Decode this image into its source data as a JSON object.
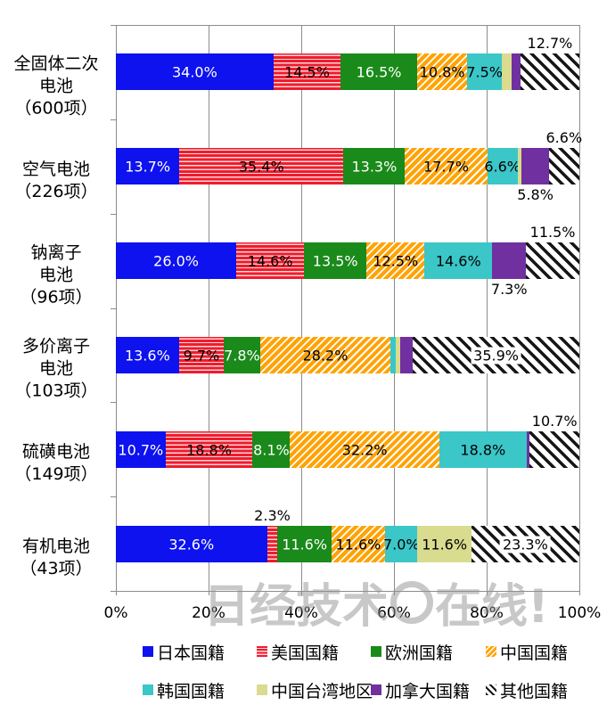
{
  "watermark": {
    "prefix": "日经技术",
    "suffix": "在线!"
  },
  "x_axis": {
    "ticks": [
      "0%",
      "20%",
      "40%",
      "60%",
      "80%",
      "100%"
    ]
  },
  "legend": {
    "rows": [
      [
        "日本国籍",
        "美国国籍",
        "欧洲国籍",
        "中国国籍"
      ],
      [
        "韩国国籍",
        "中国台湾地区",
        "加拿大国籍",
        "其他国籍"
      ]
    ]
  },
  "series_colors": {
    "日本国籍": "#0d12ee",
    "美国国籍": "#ee1c2e",
    "欧洲国籍": "#1a8a1a",
    "中国国籍": "#ffa305",
    "韩国国籍": "#3bc6c8",
    "中国台湾地区": "#d9db8f",
    "加拿大国籍": "#7030a0",
    "其他国籍": "#161616"
  },
  "chart_data": {
    "type": "bar",
    "variant": "horizontal-stacked-100pct",
    "unit": "%",
    "xlim": [
      0,
      100
    ],
    "xticks": [
      0,
      20,
      40,
      60,
      80,
      100
    ],
    "grid": true,
    "legend_position": "bottom",
    "series_order": [
      "日本国籍",
      "美国国籍",
      "欧洲国籍",
      "中国国籍",
      "韩国国籍",
      "中国台湾地区",
      "加拿大国籍",
      "其他国籍"
    ],
    "rows": [
      {
        "category": "全固体二次电池（600项）",
        "category_lines": [
          "全固体二次",
          "电池",
          "（600项）"
        ],
        "segments": [
          {
            "series": "日本国籍",
            "value": 34.0,
            "label": "34.0%",
            "label_pos": "in"
          },
          {
            "series": "美国国籍",
            "value": 14.5,
            "label": "14.5%",
            "label_pos": "in"
          },
          {
            "series": "欧洲国籍",
            "value": 16.5,
            "label": "16.5%",
            "label_pos": "in"
          },
          {
            "series": "中国国籍",
            "value": 10.8,
            "label": "10.8%",
            "label_pos": "in"
          },
          {
            "series": "韩国国籍",
            "value": 7.5,
            "label": "7.5%",
            "label_pos": "in"
          },
          {
            "series": "中国台湾地区",
            "value": 2.0,
            "label": null
          },
          {
            "series": "加拿大国籍",
            "value": 2.0,
            "label": null
          },
          {
            "series": "其他国籍",
            "value": 12.7,
            "label": "12.7%",
            "label_pos": "above"
          }
        ]
      },
      {
        "category": "空气电池（226项）",
        "category_lines": [
          "空气电池",
          "（226项）"
        ],
        "segments": [
          {
            "series": "日本国籍",
            "value": 13.7,
            "label": "13.7%",
            "label_pos": "in"
          },
          {
            "series": "美国国籍",
            "value": 35.4,
            "label": "35.4%",
            "label_pos": "in"
          },
          {
            "series": "欧洲国籍",
            "value": 13.3,
            "label": "13.3%",
            "label_pos": "in"
          },
          {
            "series": "中国国籍",
            "value": 17.7,
            "label": "17.7%",
            "label_pos": "in"
          },
          {
            "series": "韩国国籍",
            "value": 6.6,
            "label": "6.6%",
            "label_pos": "in"
          },
          {
            "series": "中国台湾地区",
            "value": 0.9,
            "label": null
          },
          {
            "series": "加拿大国籍",
            "value": 5.8,
            "label": "5.8%",
            "label_pos": "below"
          },
          {
            "series": "其他国籍",
            "value": 6.6,
            "label": "6.6%",
            "label_pos": "above"
          }
        ]
      },
      {
        "category": "钠离子电池（96项）",
        "category_lines": [
          "钠离子",
          "电池",
          "（96项）"
        ],
        "segments": [
          {
            "series": "日本国籍",
            "value": 26.0,
            "label": "26.0%",
            "label_pos": "in"
          },
          {
            "series": "美国国籍",
            "value": 14.6,
            "label": "14.6%",
            "label_pos": "in"
          },
          {
            "series": "欧洲国籍",
            "value": 13.5,
            "label": "13.5%",
            "label_pos": "in"
          },
          {
            "series": "中国国籍",
            "value": 12.5,
            "label": "12.5%",
            "label_pos": "in"
          },
          {
            "series": "韩国国籍",
            "value": 14.6,
            "label": "14.6%",
            "label_pos": "in"
          },
          {
            "series": "加拿大国籍",
            "value": 7.3,
            "label": "7.3%",
            "label_pos": "below"
          },
          {
            "series": "其他国籍",
            "value": 11.5,
            "label": "11.5%",
            "label_pos": "above"
          }
        ]
      },
      {
        "category": "多价离子电池（103项）",
        "category_lines": [
          "多价离子",
          "电池",
          "（103项）"
        ],
        "segments": [
          {
            "series": "日本国籍",
            "value": 13.6,
            "label": "13.6%",
            "label_pos": "in"
          },
          {
            "series": "美国国籍",
            "value": 9.7,
            "label": "9.7%",
            "label_pos": "in"
          },
          {
            "series": "欧洲国籍",
            "value": 7.8,
            "label": "7.8%",
            "label_pos": "in"
          },
          {
            "series": "中国国籍",
            "value": 28.2,
            "label": "28.2%",
            "label_pos": "in"
          },
          {
            "series": "韩国国籍",
            "value": 1.0,
            "label": null
          },
          {
            "series": "中国台湾地区",
            "value": 1.0,
            "label": null
          },
          {
            "series": "加拿大国籍",
            "value": 2.8,
            "label": null
          },
          {
            "series": "其他国籍",
            "value": 35.9,
            "label": "35.9%",
            "label_pos": "in-patch"
          }
        ]
      },
      {
        "category": "硫磺电池（149项）",
        "category_lines": [
          "硫磺电池",
          "（149项）"
        ],
        "segments": [
          {
            "series": "日本国籍",
            "value": 10.7,
            "label": "10.7%",
            "label_pos": "in"
          },
          {
            "series": "美国国籍",
            "value": 18.8,
            "label": "18.8%",
            "label_pos": "in"
          },
          {
            "series": "欧洲国籍",
            "value": 8.1,
            "label": "8.1%",
            "label_pos": "in"
          },
          {
            "series": "中国国籍",
            "value": 32.2,
            "label": "32.2%",
            "label_pos": "in"
          },
          {
            "series": "韩国国籍",
            "value": 18.8,
            "label": "18.8%",
            "label_pos": "in"
          },
          {
            "series": "加拿大国籍",
            "value": 0.7,
            "label": null
          },
          {
            "series": "其他国籍",
            "value": 10.7,
            "label": "10.7%",
            "label_pos": "above"
          }
        ]
      },
      {
        "category": "有机电池（43项）",
        "category_lines": [
          "有机电池",
          "（43项）"
        ],
        "segments": [
          {
            "series": "日本国籍",
            "value": 32.6,
            "label": "32.6%",
            "label_pos": "in"
          },
          {
            "series": "美国国籍",
            "value": 2.3,
            "label": "2.3%",
            "label_pos": "above"
          },
          {
            "series": "欧洲国籍",
            "value": 11.6,
            "label": "11.6%",
            "label_pos": "in"
          },
          {
            "series": "中国国籍",
            "value": 11.6,
            "label": "11.6%",
            "label_pos": "in"
          },
          {
            "series": "韩国国籍",
            "value": 7.0,
            "label": "7.0%",
            "label_pos": "in"
          },
          {
            "series": "中国台湾地区",
            "value": 11.6,
            "label": "11.6%",
            "label_pos": "in"
          },
          {
            "series": "其他国籍",
            "value": 23.3,
            "label": "23.3%",
            "label_pos": "in-patch"
          }
        ]
      }
    ]
  }
}
